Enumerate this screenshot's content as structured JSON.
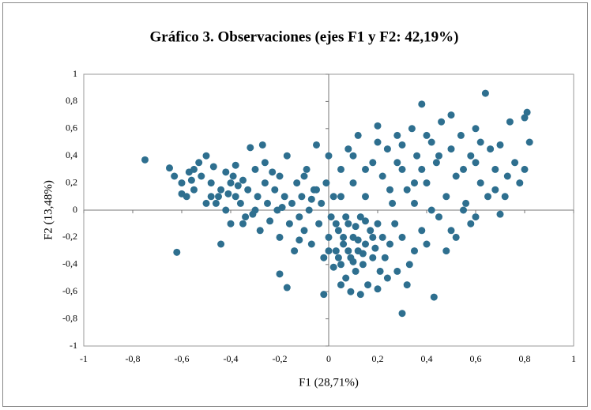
{
  "chart_data": {
    "type": "scatter",
    "title": "Gráfico 3. Observaciones (ejes F1 y F2: 42,19%)",
    "x_label": "F1 (28,71%)",
    "y_label": "F2 (13,48%)",
    "color": "#2e6f8f",
    "xlim": [
      -1,
      1
    ],
    "ylim": [
      -1,
      1
    ],
    "xticks": [
      -1,
      {
        "value": -0.8,
        "label": "-0,8"
      },
      {
        "value": -0.6,
        "label": "-0,6"
      },
      {
        "value": -0.4,
        "label": "-0,4"
      },
      {
        "value": -0.2,
        "label": "-0,2"
      },
      0,
      {
        "value": 0.2,
        "label": "0,2"
      },
      {
        "value": 0.4,
        "label": "0,4"
      },
      {
        "value": 0.6,
        "label": "0,6"
      },
      {
        "value": 0.8,
        "label": "0,8"
      },
      1
    ],
    "yticks": [
      -1,
      {
        "value": -0.8,
        "label": "-0,8"
      },
      {
        "value": -0.6,
        "label": "-0,6"
      },
      {
        "value": -0.4,
        "label": "-0,4"
      },
      {
        "value": -0.2,
        "label": "-0,2"
      },
      0,
      {
        "value": 0.2,
        "label": "0,2"
      },
      {
        "value": 0.4,
        "label": "0,4"
      },
      {
        "value": 0.6,
        "label": "0,6"
      },
      {
        "value": 0.8,
        "label": "0,8"
      },
      1
    ],
    "grid": false,
    "x": [
      -0.75,
      -0.62,
      -0.65,
      -0.63,
      -0.6,
      -0.58,
      -0.55,
      -0.55,
      -0.52,
      -0.5,
      -0.5,
      -0.48,
      -0.47,
      -0.45,
      -0.44,
      -0.42,
      -0.42,
      -0.4,
      -0.4,
      -0.38,
      -0.38,
      -0.36,
      -0.35,
      -0.34,
      -0.33,
      -0.32,
      -0.3,
      -0.3,
      -0.29,
      -0.28,
      -0.27,
      -0.26,
      -0.25,
      -0.24,
      -0.22,
      -0.21,
      -0.2,
      -0.2,
      -0.18,
      -0.17,
      -0.16,
      -0.15,
      -0.14,
      -0.13,
      -0.12,
      -0.11,
      -0.1,
      -0.09,
      -0.08,
      -0.07,
      -0.06,
      -0.05,
      -0.04,
      -0.03,
      -0.02,
      -0.02,
      -0.01,
      0.0,
      0.01,
      0.02,
      -0.2,
      -0.17,
      -0.44,
      -0.56,
      -0.53,
      -0.46,
      -0.41,
      -0.37,
      -0.31,
      -0.26,
      -0.23,
      -0.19,
      -0.1,
      -0.07,
      -0.12,
      -0.35,
      -0.39,
      -0.48,
      -0.57,
      -0.6,
      0.03,
      0.04,
      0.05,
      0.06,
      0.07,
      0.08,
      0.09,
      0.1,
      0.11,
      0.12,
      0.13,
      0.14,
      0.15,
      0.16,
      0.17,
      0.18,
      0.19,
      0.2,
      0.21,
      0.22,
      0.04,
      0.06,
      0.08,
      0.1,
      0.12,
      0.14,
      0.05,
      0.09,
      0.13,
      0.02,
      0.0,
      0.03,
      0.07,
      0.11,
      0.15,
      0.18,
      0.23,
      0.25,
      0.24,
      0.2,
      0.3,
      0.43,
      0.28,
      0.32,
      0.35,
      0.3,
      0.27,
      0.33,
      0.38,
      0.4,
      0.05,
      0.08,
      0.1,
      0.12,
      0.15,
      0.18,
      0.2,
      0.22,
      0.24,
      0.26,
      0.28,
      0.3,
      0.32,
      0.34,
      0.36,
      0.38,
      0.4,
      0.42,
      0.44,
      0.46,
      0.48,
      0.5,
      0.52,
      0.54,
      0.56,
      0.58,
      0.6,
      0.62,
      0.64,
      0.66,
      0.68,
      0.7,
      0.72,
      0.74,
      0.76,
      0.78,
      0.8,
      0.81,
      0.82,
      0.8,
      0.45,
      0.5,
      0.55,
      0.6,
      0.65,
      0.7,
      0.48,
      0.52,
      0.58,
      0.42,
      0.35,
      0.25,
      0.15,
      0.1,
      0.2,
      0.3,
      0.4,
      0.5,
      0.55,
      0.62,
      0.68,
      0.73,
      0.45,
      0.35,
      0.28,
      -0.05,
      0.0,
      0.05,
      0.38,
      0.6
    ],
    "y": [
      0.37,
      -0.31,
      0.31,
      0.25,
      0.2,
      0.1,
      0.3,
      0.15,
      0.25,
      0.05,
      0.4,
      0.2,
      0.32,
      0.1,
      0.15,
      0.28,
      0.0,
      0.2,
      -0.1,
      0.33,
      0.1,
      0.05,
      0.22,
      -0.05,
      0.15,
      0.46,
      0.0,
      0.3,
      0.1,
      -0.15,
      0.48,
      0.2,
      0.05,
      -0.08,
      0.15,
      0.0,
      0.25,
      -0.2,
      0.1,
      0.4,
      -0.1,
      0.05,
      -0.3,
      0.2,
      -0.05,
      0.1,
      -0.15,
      0.3,
      0.0,
      -0.25,
      0.15,
      0.48,
      -0.1,
      0.05,
      -0.62,
      -0.35,
      0.2,
      -0.2,
      -0.05,
      0.1,
      -0.47,
      -0.57,
      -0.25,
      0.22,
      0.35,
      0.05,
      0.12,
      0.18,
      -0.03,
      0.35,
      0.28,
      0.02,
      0.25,
      0.08,
      -0.22,
      -0.1,
      0.25,
      0.1,
      0.28,
      0.12,
      -0.3,
      -0.15,
      -0.4,
      -0.25,
      -0.5,
      -0.1,
      -0.35,
      -0.2,
      -0.45,
      -0.3,
      -0.05,
      -0.4,
      -0.25,
      -0.55,
      -0.15,
      -0.35,
      -0.28,
      -0.1,
      -0.45,
      -0.2,
      -0.35,
      -0.2,
      -0.3,
      -0.38,
      -0.22,
      -0.32,
      -0.55,
      -0.6,
      -0.62,
      -0.42,
      -0.3,
      -0.1,
      -0.05,
      -0.12,
      -0.08,
      -0.2,
      -0.35,
      -0.25,
      -0.5,
      -0.58,
      -0.76,
      -0.64,
      -0.45,
      -0.55,
      -0.3,
      -0.2,
      -0.1,
      -0.4,
      -0.15,
      -0.25,
      0.3,
      0.45,
      0.2,
      0.55,
      0.1,
      0.35,
      0.62,
      0.25,
      0.45,
      0.05,
      0.55,
      0.3,
      0.15,
      0.6,
      0.4,
      0.78,
      0.2,
      0.5,
      0.35,
      0.65,
      0.1,
      0.45,
      0.25,
      0.55,
      0.05,
      0.4,
      0.6,
      0.2,
      0.86,
      0.45,
      0.3,
      0.48,
      0.1,
      0.65,
      0.35,
      0.2,
      0.3,
      0.72,
      0.5,
      0.68,
      -0.05,
      -0.15,
      0.0,
      -0.05,
      0.1,
      -0.03,
      -0.3,
      -0.2,
      -0.1,
      0.0,
      0.05,
      0.15,
      0.3,
      0.4,
      0.5,
      0.48,
      0.55,
      0.7,
      0.3,
      0.5,
      0.15,
      0.25,
      0.4,
      0.2,
      0.35,
      0.15,
      0.4,
      0.1,
      0.3,
      0.35
    ]
  }
}
